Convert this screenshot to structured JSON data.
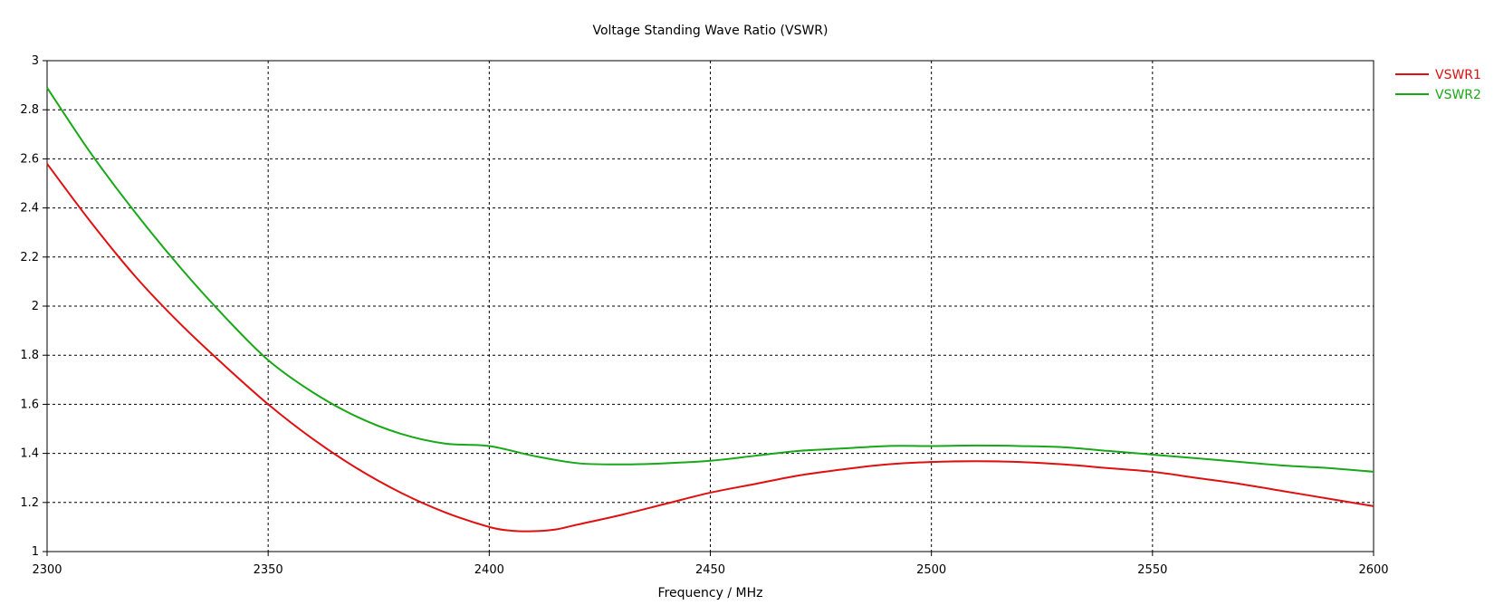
{
  "chart_data": {
    "type": "line",
    "title": "Voltage Standing Wave Ratio (VSWR)",
    "xlabel": "Frequency / MHz",
    "ylabel": "",
    "xlim": [
      2300,
      2600
    ],
    "ylim": [
      1,
      3
    ],
    "xticks": [
      2300,
      2350,
      2400,
      2450,
      2500,
      2550,
      2600
    ],
    "xtick_labels": [
      "2300",
      "2350",
      "2400",
      "2450",
      "2500",
      "2550",
      "2600"
    ],
    "yticks": [
      1,
      1.2,
      1.4,
      1.6,
      1.8,
      2,
      2.2,
      2.4,
      2.6,
      2.8,
      3
    ],
    "ytick_labels": [
      "1",
      "1.2",
      "1.4",
      "1.6",
      "1.8",
      "2",
      "2.2",
      "2.4",
      "2.6",
      "2.8",
      "3"
    ],
    "grid": true,
    "legend_position": "top-right outside",
    "series": [
      {
        "name": "VSWR1",
        "color": "#e01010",
        "x": [
          2300,
          2310,
          2320,
          2330,
          2340,
          2350,
          2360,
          2370,
          2380,
          2390,
          2400,
          2405,
          2410,
          2415,
          2420,
          2430,
          2440,
          2450,
          2460,
          2470,
          2480,
          2490,
          2500,
          2510,
          2520,
          2530,
          2540,
          2550,
          2560,
          2570,
          2580,
          2590,
          2600
        ],
        "y": [
          2.58,
          2.34,
          2.12,
          1.93,
          1.76,
          1.6,
          1.46,
          1.34,
          1.24,
          1.16,
          1.1,
          1.085,
          1.083,
          1.09,
          1.11,
          1.15,
          1.195,
          1.24,
          1.275,
          1.31,
          1.335,
          1.355,
          1.365,
          1.368,
          1.365,
          1.355,
          1.34,
          1.325,
          1.3,
          1.275,
          1.245,
          1.215,
          1.185
        ]
      },
      {
        "name": "VSWR2",
        "color": "#18a818",
        "x": [
          2300,
          2310,
          2320,
          2330,
          2340,
          2350,
          2360,
          2370,
          2380,
          2390,
          2400,
          2410,
          2420,
          2430,
          2440,
          2450,
          2460,
          2470,
          2480,
          2490,
          2500,
          2510,
          2520,
          2530,
          2540,
          2550,
          2560,
          2570,
          2580,
          2590,
          2600
        ],
        "y": [
          2.89,
          2.62,
          2.38,
          2.16,
          1.96,
          1.78,
          1.65,
          1.55,
          1.48,
          1.44,
          1.43,
          1.39,
          1.36,
          1.355,
          1.36,
          1.37,
          1.39,
          1.41,
          1.42,
          1.43,
          1.43,
          1.432,
          1.43,
          1.425,
          1.41,
          1.395,
          1.38,
          1.365,
          1.35,
          1.34,
          1.325
        ]
      }
    ]
  }
}
